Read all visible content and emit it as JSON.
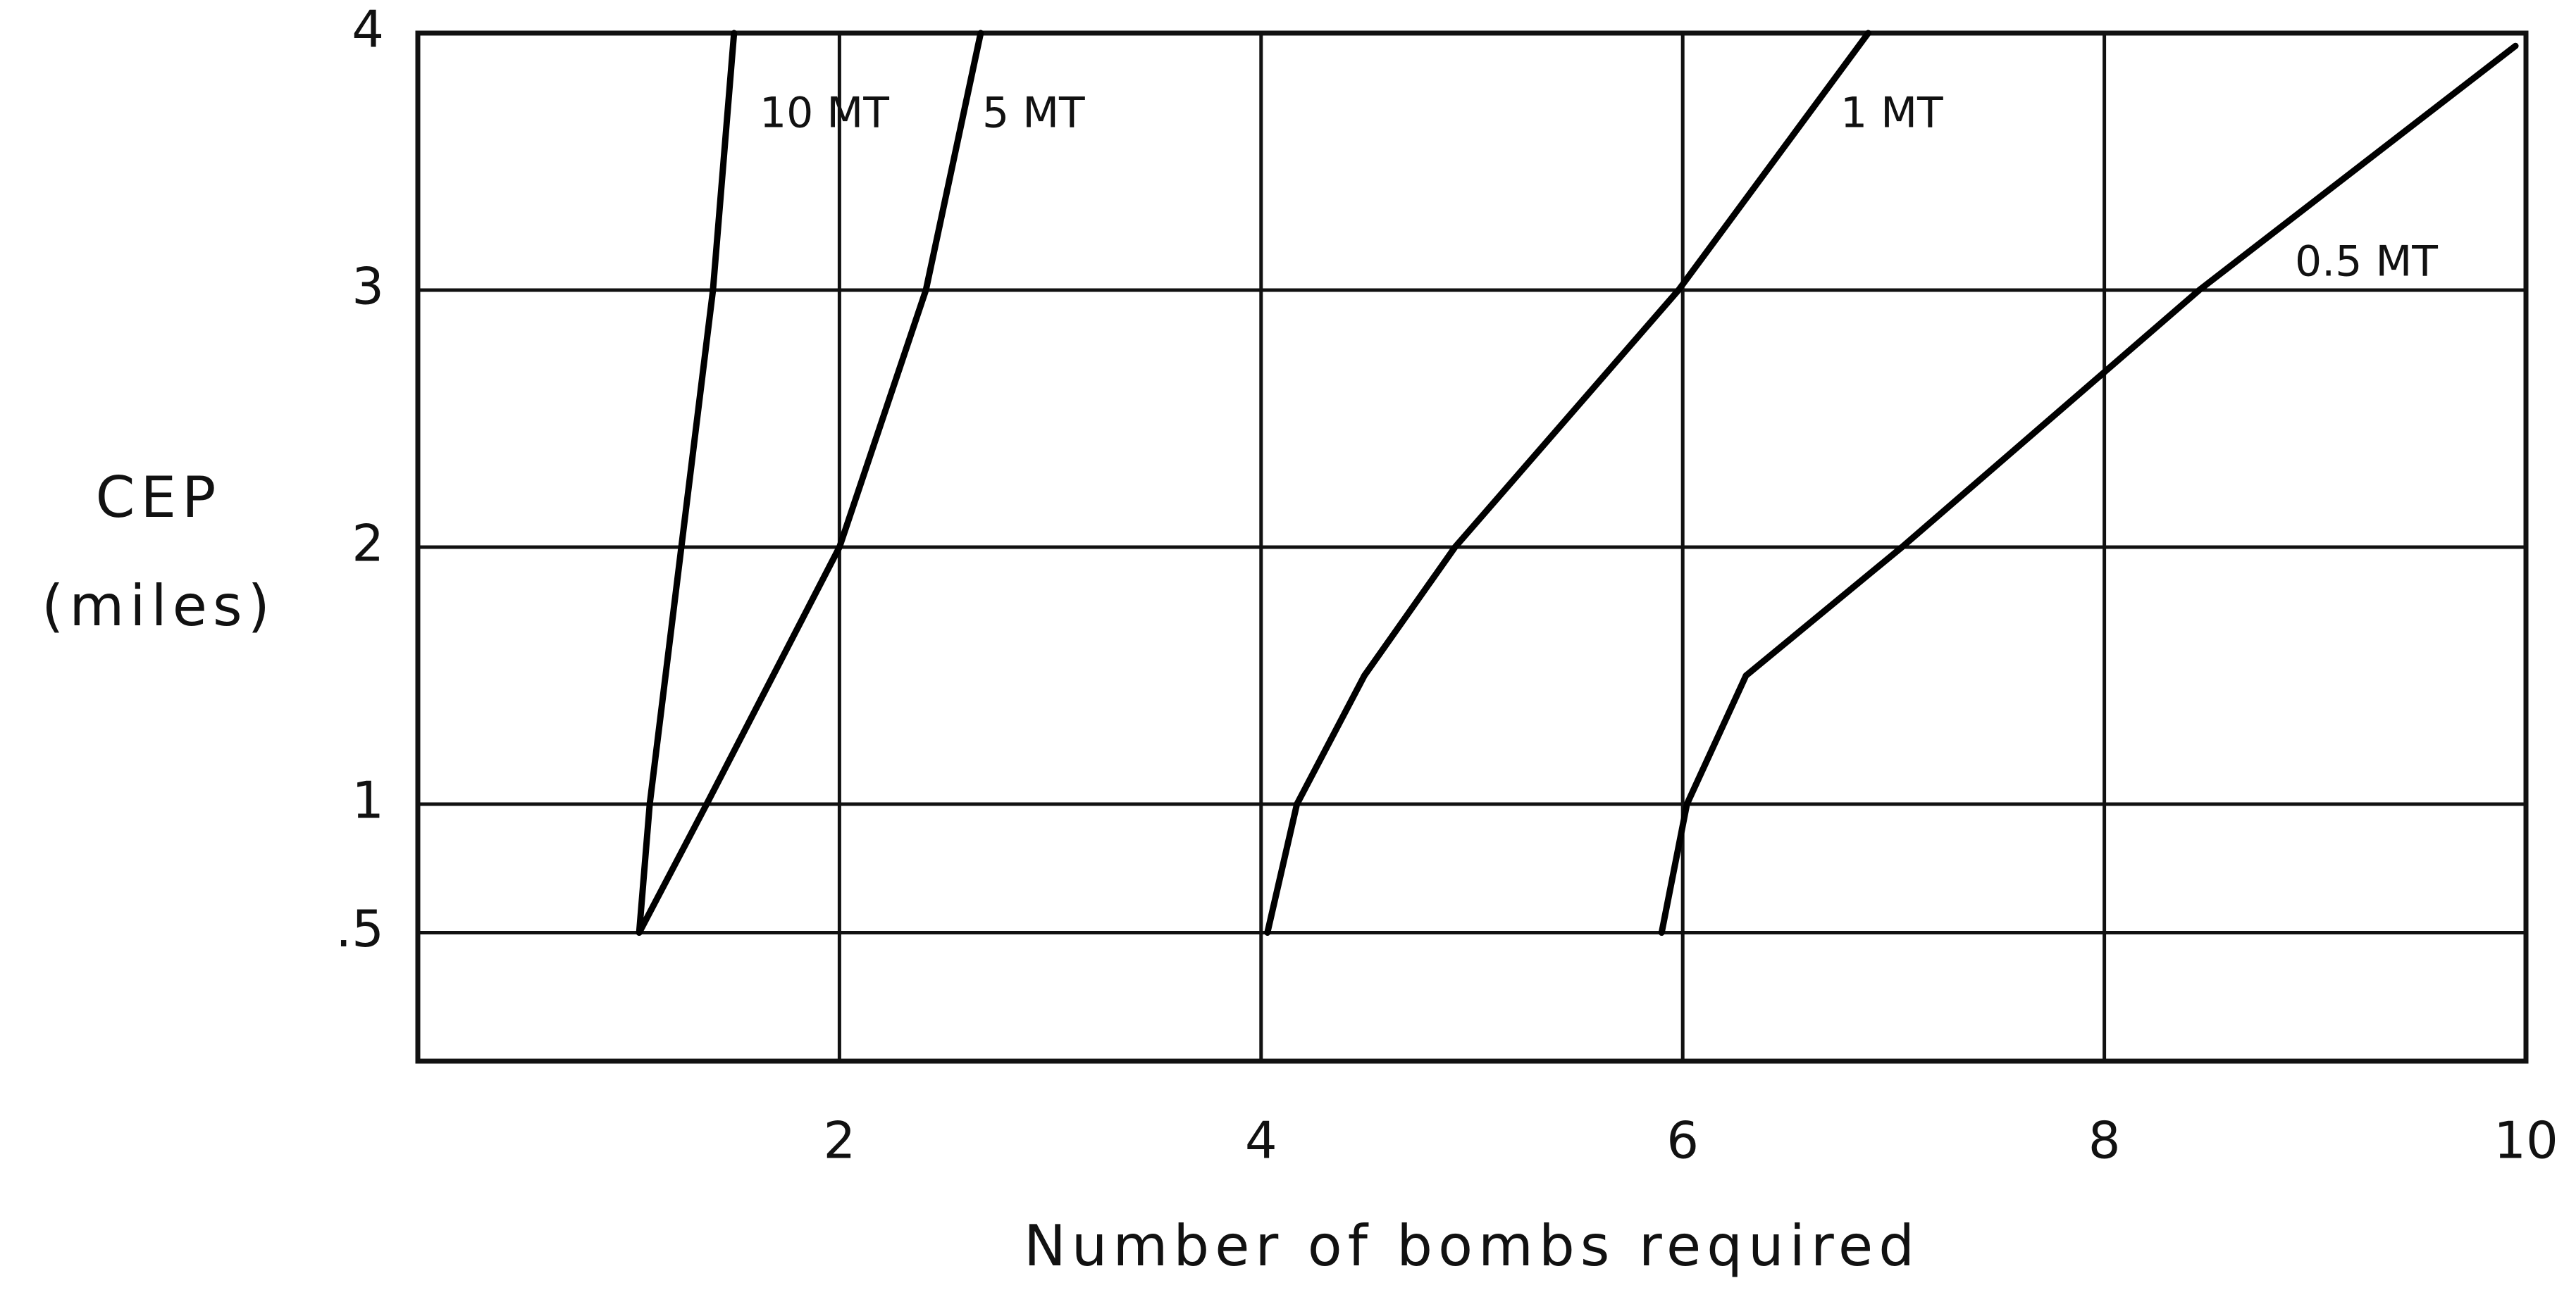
{
  "chart_data": {
    "type": "line",
    "xlabel": "Number of bombs required",
    "ylabel": "CEP",
    "ylabel_unit": "(miles)",
    "xlim": [
      0,
      10
    ],
    "xticks": [
      2,
      4,
      6,
      8,
      10
    ],
    "ylim": [
      0,
      4
    ],
    "yticks": [
      {
        "value": 0.5,
        "label": ".5"
      },
      1,
      2,
      3,
      4
    ],
    "grid": true,
    "series": [
      {
        "name": "10 MT",
        "color": "#000000",
        "x": [
          1.05,
          1.1,
          1.25,
          1.4,
          1.5
        ],
        "values": [
          0.5,
          1,
          2,
          3,
          4
        ]
      },
      {
        "name": "5 MT",
        "color": "#000000",
        "x": [
          1.05,
          1.37,
          2.0,
          2.41,
          2.67
        ],
        "values": [
          0.5,
          1,
          2,
          3,
          4
        ]
      },
      {
        "name": "1 MT",
        "color": "#000000",
        "x": [
          4.03,
          4.17,
          4.49,
          4.92,
          5.98,
          6.88
        ],
        "values": [
          0.5,
          1,
          1.5,
          2,
          3,
          4
        ]
      },
      {
        "name": "0.5 MT",
        "color": "#000000",
        "x": [
          5.9,
          6.02,
          6.3,
          7.04,
          8.45,
          9.95
        ],
        "values": [
          0.5,
          1,
          1.5,
          2,
          3,
          3.95
        ]
      }
    ]
  }
}
